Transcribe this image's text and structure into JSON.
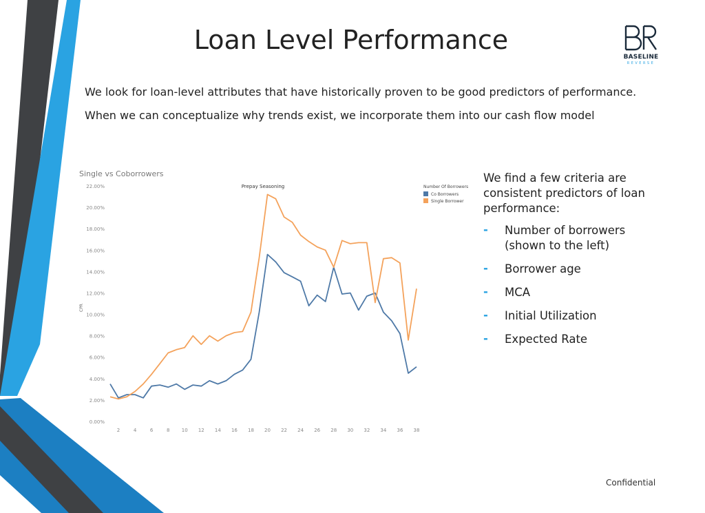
{
  "slide": {
    "title": "Loan Level Performance",
    "logo": {
      "name": "BASELINE",
      "sub": "REVERSE",
      "mark": "BR"
    },
    "intro": [
      "We look for loan-level attributes that have historically proven to be good predictors of performance.",
      "When we can conceptualize why trends exist, we incorporate them into our cash flow model"
    ],
    "chart_caption": "Single vs Coborrowers",
    "criteria_intro": "We find a few criteria are consistent predictors of loan performance:",
    "criteria": [
      {
        "dash": "-",
        "text": "Number of borrowers (shown to the left)"
      },
      {
        "dash": "-",
        "text": "Borrower age"
      },
      {
        "dash": "-",
        "text": "MCA"
      },
      {
        "dash": "-",
        "text": "Initial Utilization"
      },
      {
        "dash": "-",
        "text": "Expected Rate"
      }
    ],
    "footer": "Confidential",
    "colors": {
      "accent_blue": "#2aa3e2",
      "dark_stripe": "#3f4144",
      "mid_blue": "#1c7fc2"
    }
  },
  "chart_data": {
    "type": "line",
    "title": "Prepay Seasoning",
    "ylabel": "CPR",
    "xlabel": "",
    "legend_title": "Number Of Borrowers",
    "legend_position": "top-right",
    "ylim": [
      0,
      22
    ],
    "xlim": [
      1,
      38
    ],
    "yticks": [
      0,
      2,
      4,
      6,
      8,
      10,
      12,
      14,
      16,
      18,
      20,
      22
    ],
    "ytick_labels": [
      "0.00%",
      "2.00%",
      "4.00%",
      "6.00%",
      "8.00%",
      "10.00%",
      "12.00%",
      "14.00%",
      "16.00%",
      "18.00%",
      "20.00%",
      "22.00%"
    ],
    "xticks": [
      2,
      4,
      6,
      8,
      10,
      12,
      14,
      16,
      18,
      20,
      22,
      24,
      26,
      28,
      30,
      32,
      34,
      36,
      38
    ],
    "x": [
      1,
      2,
      3,
      4,
      5,
      6,
      7,
      8,
      9,
      10,
      11,
      12,
      13,
      14,
      15,
      16,
      17,
      18,
      19,
      20,
      21,
      22,
      23,
      24,
      25,
      26,
      27,
      28,
      29,
      30,
      31,
      32,
      33,
      34,
      35,
      36,
      37,
      38
    ],
    "series": [
      {
        "name": "Co Borrowers",
        "color": "#4e79a7",
        "values": [
          3.5,
          2.2,
          2.5,
          2.5,
          2.2,
          3.3,
          3.4,
          3.2,
          3.5,
          3.0,
          3.4,
          3.3,
          3.8,
          3.5,
          3.8,
          4.4,
          4.8,
          5.8,
          10.2,
          15.6,
          14.9,
          13.9,
          13.5,
          13.1,
          10.8,
          11.8,
          11.2,
          14.4,
          11.9,
          12.0,
          10.4,
          11.7,
          12.0,
          10.2,
          9.4,
          8.2,
          4.5,
          5.1
        ]
      },
      {
        "name": "Single Borrower",
        "color": "#f4a25b",
        "values": [
          2.3,
          2.1,
          2.3,
          2.8,
          3.5,
          4.4,
          5.4,
          6.4,
          6.7,
          6.9,
          8.0,
          7.2,
          8.0,
          7.5,
          8.0,
          8.3,
          8.4,
          10.2,
          15.3,
          21.2,
          20.8,
          19.1,
          18.6,
          17.4,
          16.8,
          16.3,
          16.0,
          14.4,
          16.9,
          16.6,
          16.7,
          16.7,
          11.1,
          15.2,
          15.3,
          14.8,
          7.6,
          12.4
        ]
      }
    ]
  }
}
